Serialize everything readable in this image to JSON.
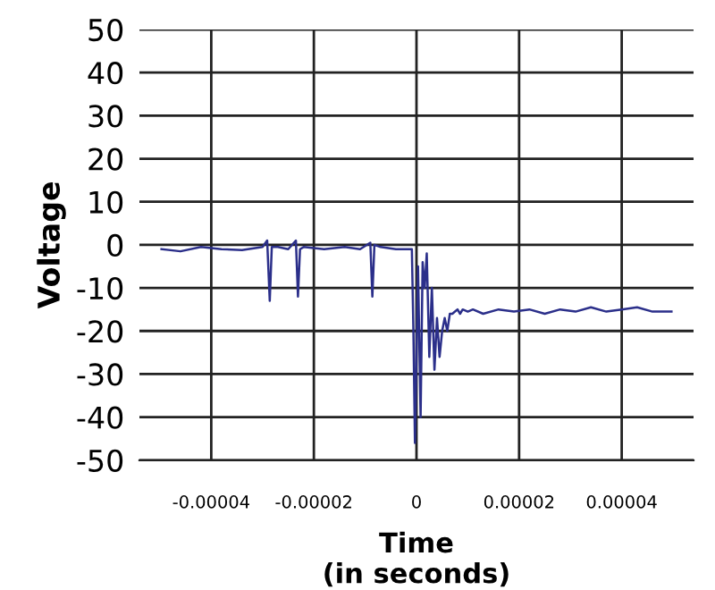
{
  "chart_data": {
    "type": "line",
    "xlabel": "Time\n(in seconds)",
    "ylabel": "Voltage",
    "xlim": [
      -5.4e-05,
      5.4e-05
    ],
    "ylim": [
      -50,
      50
    ],
    "xticks": [
      {
        "value": -4e-05,
        "label": "-0.00004"
      },
      {
        "value": -2e-05,
        "label": "-0.00002"
      },
      {
        "value": 0,
        "label": "0"
      },
      {
        "value": 2e-05,
        "label": "0.00002"
      },
      {
        "value": 4e-05,
        "label": "0.00004"
      }
    ],
    "yticks": [
      -50,
      -40,
      -30,
      -20,
      -10,
      0,
      10,
      20,
      30,
      40,
      50
    ],
    "grid": true,
    "series": [
      {
        "color": "#2b2f8a",
        "x": [
          -4.97e-05,
          -4.6e-05,
          -4.2e-05,
          -3.8e-05,
          -3.4e-05,
          -3e-05,
          -2.91e-05,
          -2.86e-05,
          -2.82e-05,
          -2.7e-05,
          -2.5e-05,
          -2.35e-05,
          -2.31e-05,
          -2.27e-05,
          -2.2e-05,
          -1.8e-05,
          -1.4e-05,
          -1.1e-05,
          -9e-06,
          -8.6e-06,
          -8.2e-06,
          -7e-06,
          -4e-06,
          -2e-06,
          -9e-07,
          -6e-07,
          -3e-07,
          3e-07,
          8e-07,
          1.2e-06,
          1.6e-06,
          2e-06,
          2.5e-06,
          3e-06,
          3.5e-06,
          4e-06,
          4.5e-06,
          5e-06,
          5.5e-06,
          6e-06,
          6.5e-06,
          7e-06,
          7.5e-06,
          8e-06,
          8.5e-06,
          9e-06,
          1e-05,
          1.1e-05,
          1.3e-05,
          1.6e-05,
          1.9e-05,
          2.2e-05,
          2.5e-05,
          2.8e-05,
          3.1e-05,
          3.4e-05,
          3.7e-05,
          4e-05,
          4.3e-05,
          4.6e-05,
          4.97e-05
        ],
        "values": [
          -1,
          -1.5,
          -0.5,
          -1,
          -1.2,
          -0.5,
          1,
          -13,
          -0.5,
          -0.5,
          -1,
          1,
          -12,
          -1,
          -0.5,
          -1,
          -0.5,
          -1,
          0.5,
          -12,
          0,
          -0.5,
          -1,
          -1,
          -1,
          -20,
          -46,
          -5,
          -40,
          -4,
          -10,
          -2,
          -26,
          -10,
          -29,
          -17,
          -26,
          -20,
          -17,
          -20,
          -16,
          -16,
          -15.5,
          -15,
          -16,
          -15,
          -15.5,
          -15,
          -16,
          -15,
          -15.5,
          -15,
          -16,
          -15,
          -15.5,
          -14.5,
          -15.5,
          -15,
          -14.5,
          -15.5,
          -15.5
        ]
      }
    ]
  }
}
